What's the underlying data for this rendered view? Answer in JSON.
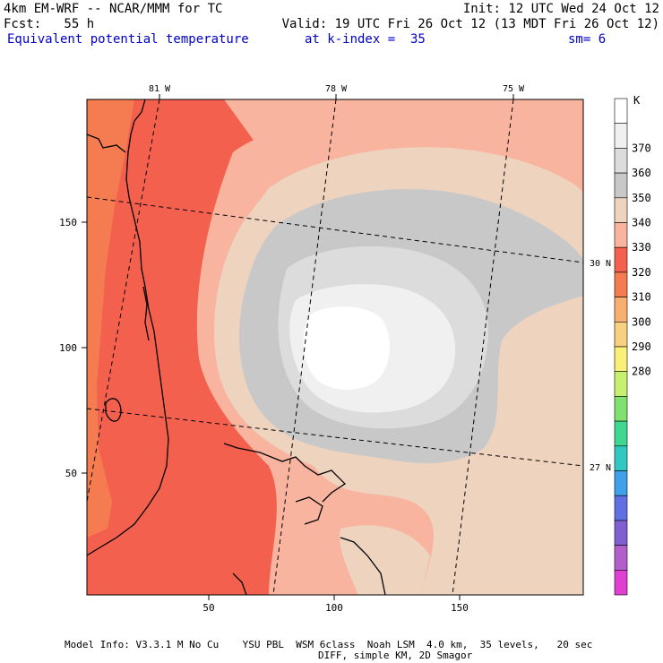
{
  "header": {
    "line1_left": "4km EM-WRF -- NCAR/MMM for TC",
    "line1_right": "Init: 12 UTC Wed 24 Oct 12",
    "line2_left": "Fcst:   55 h",
    "line2_right": "Valid: 19 UTC Fri 26 Oct 12 (13 MDT Fri 26 Oct 12)",
    "field_name": "Equivalent potential temperature",
    "level": "at k-index =  35",
    "smoothing": "sm= 6"
  },
  "map": {
    "lon_labels": [
      "81 W",
      "78 W",
      "75 W"
    ],
    "lat_labels": [
      "30 N",
      "27 N"
    ],
    "x_ticks": [
      "50",
      "100",
      "150"
    ],
    "y_ticks": [
      "150",
      "100",
      "50"
    ]
  },
  "colorbar": {
    "unit": "K",
    "labels": [
      "370",
      "360",
      "350",
      "340",
      "330",
      "320",
      "310",
      "300",
      "290",
      "280"
    ],
    "colors": [
      "#ffffff",
      "#f0f0f0",
      "#dcdcdc",
      "#c8c8c8",
      "#eed3bf",
      "#f8b49e",
      "#f4604e",
      "#f47c50",
      "#f8b070",
      "#f8d080",
      "#f8f078",
      "#c8f070",
      "#80e070",
      "#40d890",
      "#30c8c0",
      "#40a0e8",
      "#6070e0",
      "#8060d0",
      "#b060c8",
      "#e040d0"
    ]
  },
  "footer": {
    "line1": "Model Info: V3.3.1 M No Cu    YSU PBL  WSM 6class  Noah LSM  4.0 km,  35 levels,   20 sec",
    "line2": "DIFF, simple KM, 2D Smagor"
  }
}
